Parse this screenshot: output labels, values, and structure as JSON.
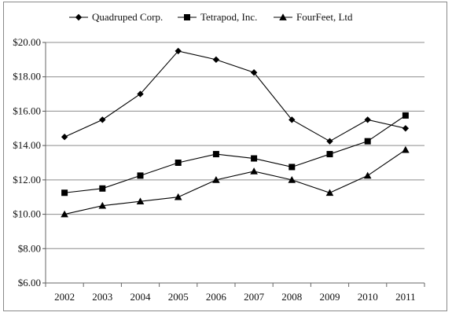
{
  "chart_data": {
    "type": "line",
    "title": "",
    "xlabel": "",
    "ylabel": "",
    "categories": [
      "2002",
      "2003",
      "2004",
      "2005",
      "2006",
      "2007",
      "2008",
      "2009",
      "2010",
      "2011"
    ],
    "ylim": [
      6,
      20
    ],
    "y_ticks": [
      6,
      8,
      10,
      12,
      14,
      16,
      18,
      20
    ],
    "y_tick_labels": [
      "$6.00",
      "$8.00",
      "$10.00",
      "$12.00",
      "$14.00",
      "$16.00",
      "$18.00",
      "$20.00"
    ],
    "grid": {
      "horizontal": true,
      "vertical": false
    },
    "legend_position": "top",
    "series": [
      {
        "name": "Quadruped Corp.",
        "marker": "diamond",
        "color": "#000000",
        "values": [
          14.5,
          15.5,
          17.0,
          19.5,
          19.0,
          18.25,
          15.5,
          14.25,
          15.5,
          15.0
        ]
      },
      {
        "name": "Tetrapod, Inc.",
        "marker": "square",
        "color": "#000000",
        "values": [
          11.25,
          11.5,
          12.25,
          13.0,
          13.5,
          13.25,
          12.75,
          13.5,
          14.25,
          15.75
        ]
      },
      {
        "name": "FourFeet, Ltd",
        "marker": "triangle",
        "color": "#000000",
        "values": [
          10.0,
          10.5,
          10.75,
          11.0,
          12.0,
          12.5,
          12.0,
          11.25,
          12.25,
          13.75
        ]
      }
    ]
  }
}
